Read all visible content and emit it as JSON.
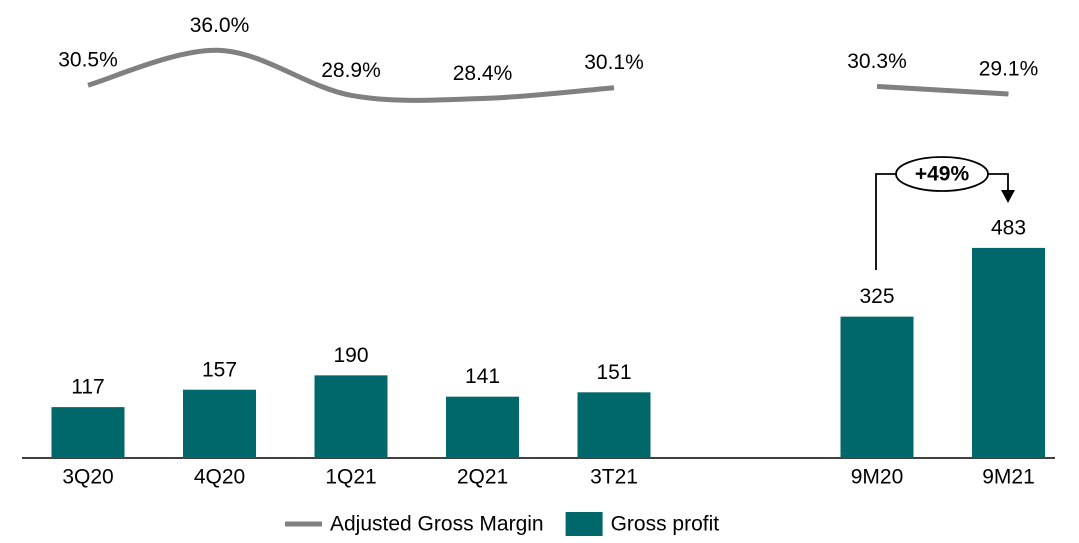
{
  "chart_data": {
    "type": "bar",
    "categories": [
      "3Q20",
      "4Q20",
      "1Q21",
      "2Q21",
      "3T21",
      null,
      "9M20",
      "9M21"
    ],
    "series": [
      {
        "name": "Adjusted Gross Margin",
        "type": "line",
        "color": "#808080",
        "axis": "y2",
        "values": [
          30.5,
          36.0,
          28.9,
          28.4,
          30.1,
          null,
          30.3,
          29.1
        ],
        "value_labels": [
          "30.5%",
          "36.0%",
          "28.9%",
          "28.4%",
          "30.1%",
          null,
          "30.3%",
          "29.1%"
        ]
      },
      {
        "name": "Gross profit",
        "type": "bar",
        "color": "#00686a",
        "values": [
          117,
          157,
          190,
          141,
          151,
          null,
          325,
          483
        ]
      }
    ],
    "ylim": [
      0,
      500
    ],
    "y2lim": [
      25,
      40
    ],
    "annotation": "+49%",
    "legend": "bottom"
  }
}
